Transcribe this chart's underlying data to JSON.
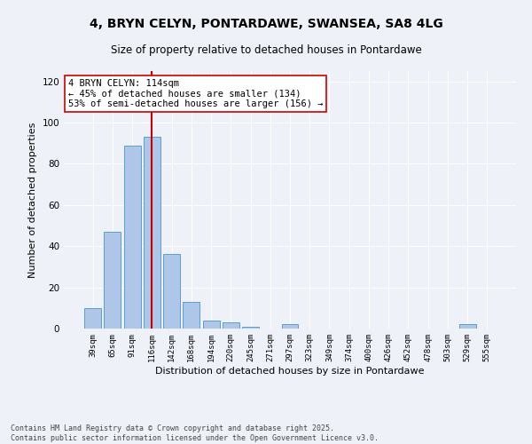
{
  "title1": "4, BRYN CELYN, PONTARDAWE, SWANSEA, SA8 4LG",
  "title2": "Size of property relative to detached houses in Pontardawe",
  "xlabel": "Distribution of detached houses by size in Pontardawe",
  "ylabel": "Number of detached properties",
  "categories": [
    "39sqm",
    "65sqm",
    "91sqm",
    "116sqm",
    "142sqm",
    "168sqm",
    "194sqm",
    "220sqm",
    "245sqm",
    "271sqm",
    "297sqm",
    "323sqm",
    "349sqm",
    "374sqm",
    "400sqm",
    "426sqm",
    "452sqm",
    "478sqm",
    "503sqm",
    "529sqm",
    "555sqm"
  ],
  "values": [
    10,
    47,
    89,
    93,
    36,
    13,
    4,
    3,
    1,
    0,
    2,
    0,
    0,
    0,
    0,
    0,
    0,
    0,
    0,
    2,
    0
  ],
  "bar_color": "#aec6e8",
  "bar_edge_color": "#5a9fd4",
  "vline_x": 3.0,
  "vline_color": "#cc0000",
  "annotation_text": "4 BRYN CELYN: 114sqm\n← 45% of detached houses are smaller (134)\n53% of semi-detached houses are larger (156) →",
  "annotation_box_color": "white",
  "annotation_box_edge": "#cc0000",
  "ylim": [
    0,
    125
  ],
  "yticks": [
    0,
    20,
    40,
    60,
    80,
    100,
    120
  ],
  "bg_color": "#eef2f8",
  "grid_color": "white",
  "footnote": "Contains HM Land Registry data © Crown copyright and database right 2025.\nContains public sector information licensed under the Open Government Licence v3.0.",
  "title1_fontsize": 10,
  "title2_fontsize": 8.5,
  "annotation_fontsize": 7.5,
  "footnote_fontsize": 6.0,
  "tick_fontsize": 6.5,
  "ylabel_fontsize": 8,
  "xlabel_fontsize": 8
}
